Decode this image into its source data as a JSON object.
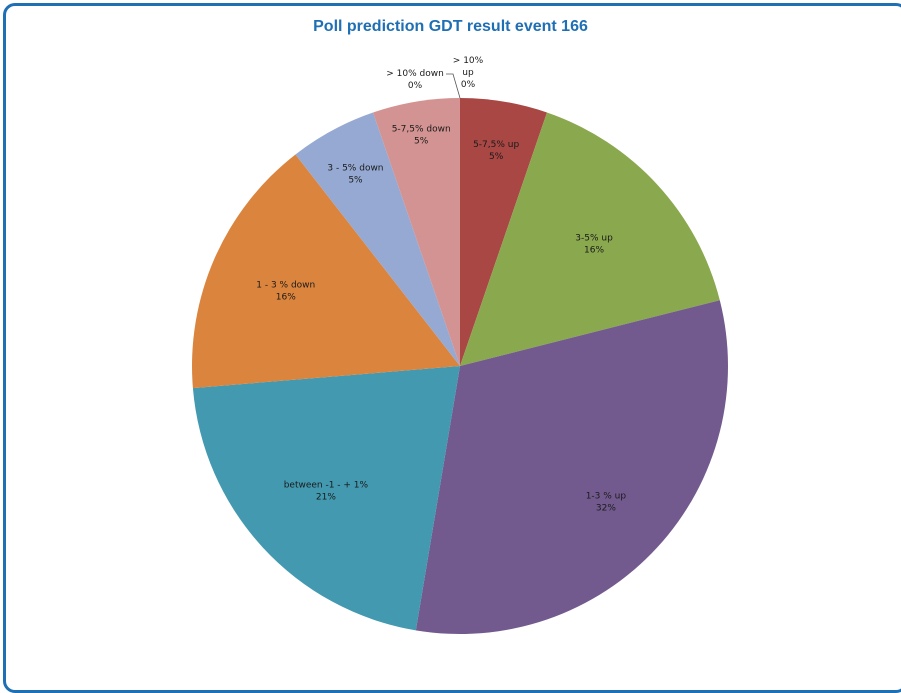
{
  "chart_data": {
    "type": "pie",
    "title": "Poll prediction GDT result event 166",
    "slices": [
      {
        "name": "> 10% up",
        "line1": "> 10%",
        "line2": "up",
        "pct_label": "0%",
        "value": 0,
        "color": "#4f81bd"
      },
      {
        "name": "5-7,5% up",
        "line1": "5-7,5% up",
        "line2": "",
        "pct_label": "5%",
        "value": 5.26,
        "color": "#a84744"
      },
      {
        "name": "3-5% up",
        "line1": "3-5% up",
        "line2": "",
        "pct_label": "16%",
        "value": 15.79,
        "color": "#8aa84e"
      },
      {
        "name": "1-3 % up",
        "line1": "1-3 % up",
        "line2": "",
        "pct_label": "32%",
        "value": 31.58,
        "color": "#725a8e"
      },
      {
        "name": "between -1 - + 1%",
        "line1": "between -1 - + 1%",
        "line2": "",
        "pct_label": "21%",
        "value": 21.05,
        "color": "#4299b0"
      },
      {
        "name": "1 - 3 % down",
        "line1": "1 - 3 % down",
        "line2": "",
        "pct_label": "16%",
        "value": 15.79,
        "color": "#db843d"
      },
      {
        "name": "3 - 5% down",
        "line1": "3 - 5% down",
        "line2": "",
        "pct_label": "5%",
        "value": 5.26,
        "color": "#95a9d3"
      },
      {
        "name": "5-7,5% down",
        "line1": "5-7,5% down",
        "line2": "",
        "pct_label": "5%",
        "value": 5.26,
        "color": "#d39392"
      },
      {
        "name": "> 10% down",
        "line1": "> 10% down",
        "line2": "",
        "pct_label": "0%",
        "value": 0,
        "color": "#c0504d"
      }
    ]
  }
}
